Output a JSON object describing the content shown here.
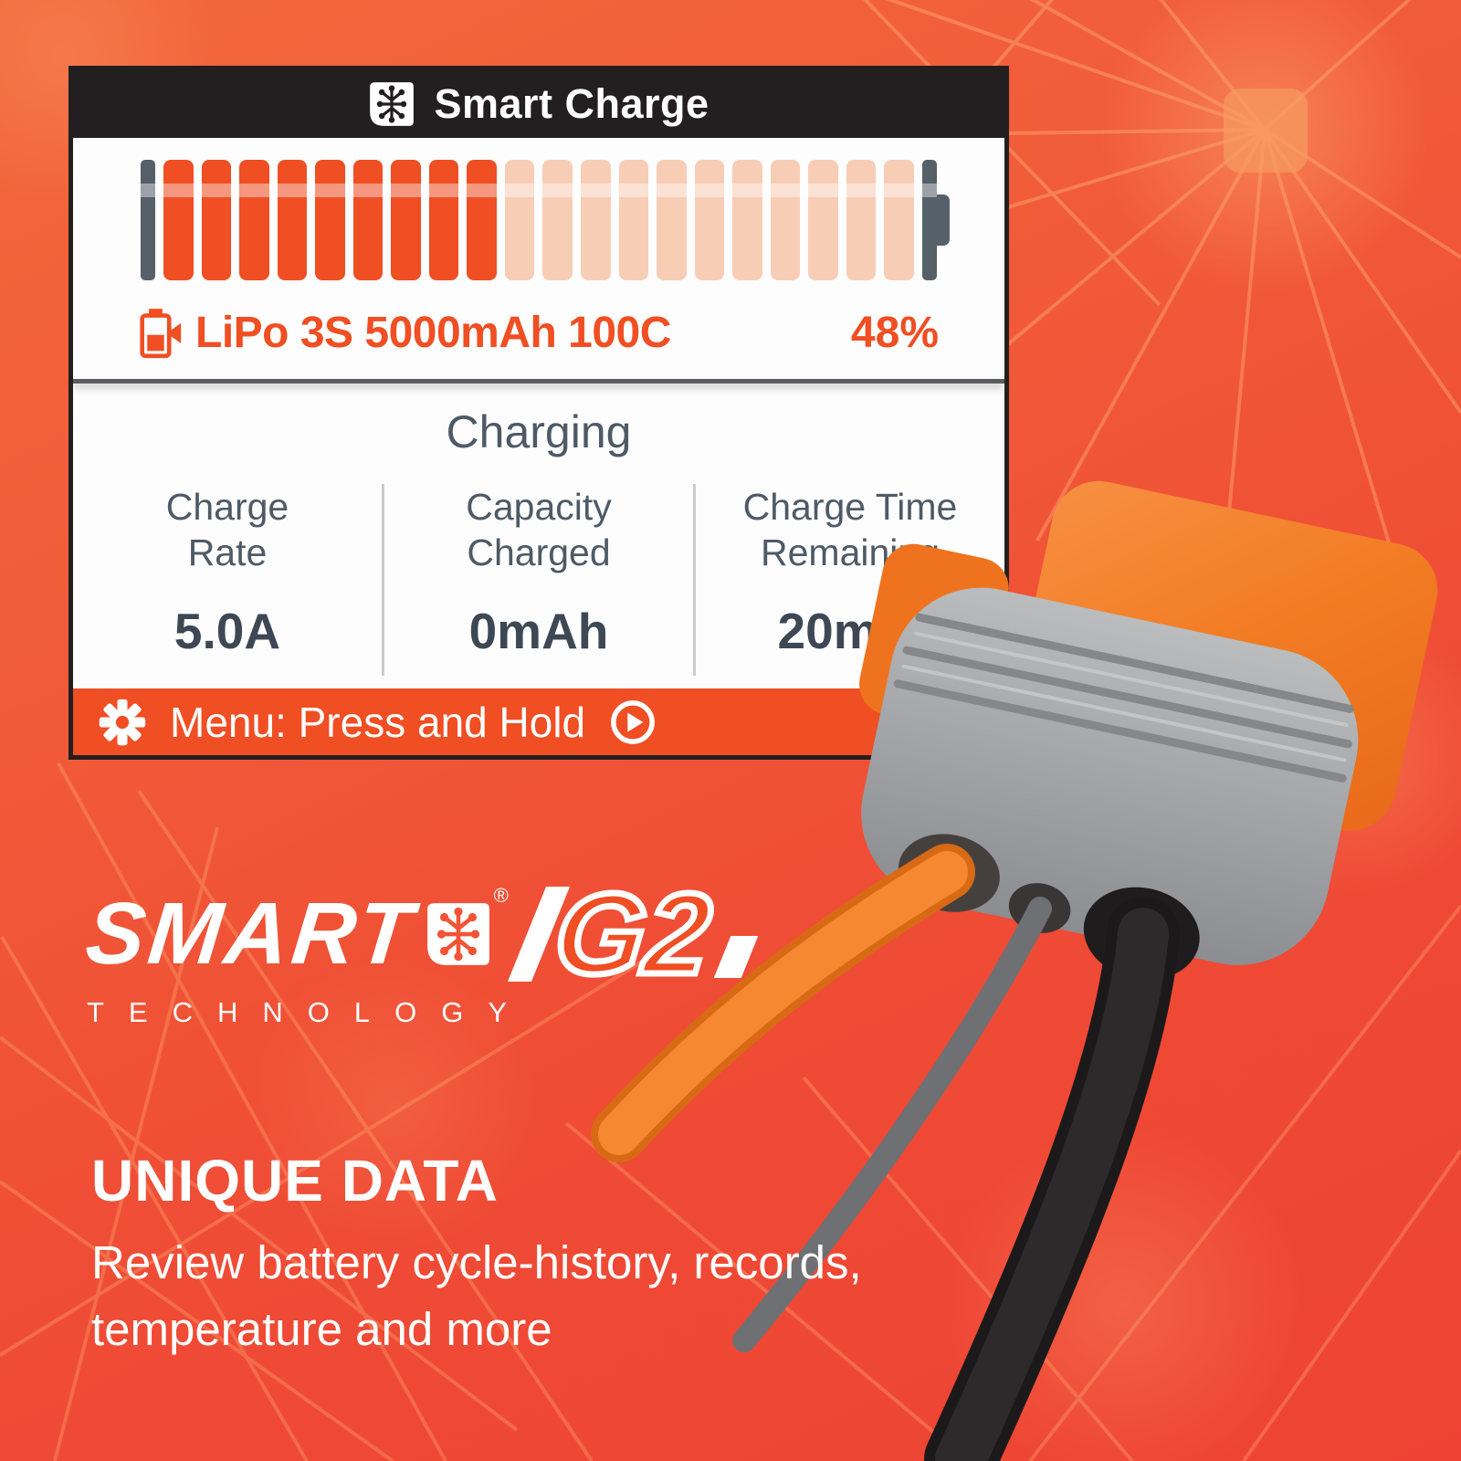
{
  "device_screen": {
    "header": {
      "title": "Smart Charge",
      "icon": "smart-technology-icon"
    },
    "battery_gauge": {
      "segments_total": 20,
      "segments_filled": 9
    },
    "pack_info": {
      "icon": "battery-charging-icon",
      "label": "LiPo 3S 5000mAh 100C",
      "percent": "48%"
    },
    "status": "Charging",
    "metrics": [
      {
        "label": "Charge\nRate",
        "value": "5.0A"
      },
      {
        "label": "Capacity\nCharged",
        "value": "0mAh"
      },
      {
        "label": "Charge Time\nRemaining",
        "value": "20min"
      }
    ],
    "menu_bar": {
      "gear_icon": "gear-icon",
      "label": "Menu: Press and Hold",
      "play_icon": "play-circle-icon"
    }
  },
  "logo": {
    "brand": "SMART",
    "registered_mark": "®",
    "generation": "G2",
    "subtitle": "TECHNOLOGY"
  },
  "feature": {
    "heading": "UNIQUE DATA",
    "description": "Review battery cycle-history, records, temperature and more"
  },
  "colors": {
    "accent_orange": "#f04e23",
    "pale_segment": "#f8cdb5",
    "terminal_gray": "#566069",
    "header_black": "#231f20",
    "slate_text": "#4e5a66",
    "value_text": "#3d4854",
    "background_top": "#f4683c",
    "background_bottom": "#ee4133"
  }
}
